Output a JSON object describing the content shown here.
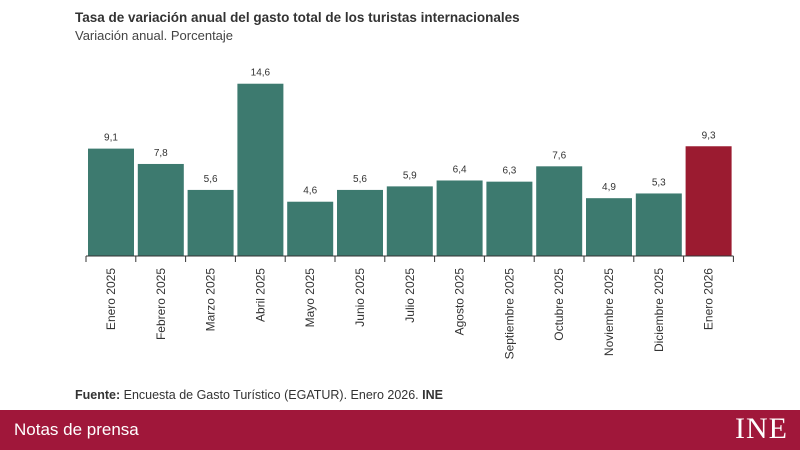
{
  "chart_data": {
    "type": "bar",
    "title": "Tasa de variación anual del gasto total de los turistas internacionales",
    "subtitle": "Variación anual. Porcentaje",
    "categories": [
      "Enero 2025",
      "Febrero 2025",
      "Marzo 2025",
      "Abril 2025",
      "Mayo 2025",
      "Junio 2025",
      "Julio 2025",
      "Agosto 2025",
      "Septiembre 2025",
      "Octubre 2025",
      "Noviembre 2025",
      "Diciembre 2025",
      "Enero 2026"
    ],
    "values": [
      9.1,
      7.8,
      5.6,
      14.6,
      4.6,
      5.6,
      5.9,
      6.4,
      6.3,
      7.6,
      4.9,
      5.3,
      9.3
    ],
    "value_labels": [
      "9,1",
      "7,8",
      "5,6",
      "14,6",
      "4,6",
      "5,6",
      "5,9",
      "6,4",
      "6,3",
      "7,6",
      "4,9",
      "5,3",
      "9,3"
    ],
    "colors": {
      "default": "#3d7a6f",
      "highlight": "#9b1b30",
      "axis": "#333333"
    },
    "highlight_index": 12,
    "ylim": [
      0,
      15
    ],
    "grid": false
  },
  "source": {
    "label": "Fuente:",
    "text": " Encuesta de Gasto Turístico (EGATUR). Enero 2026. ",
    "org": "INE"
  },
  "footer": {
    "label": "Notas de prensa",
    "logo_text": "INE"
  }
}
